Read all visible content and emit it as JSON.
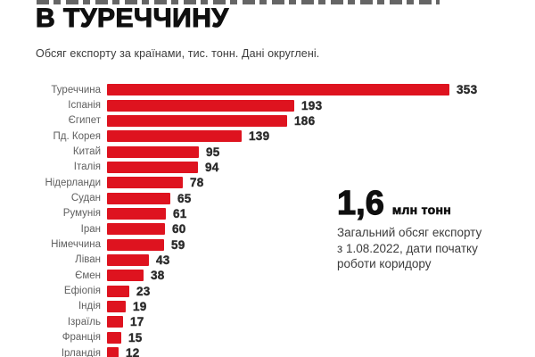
{
  "header": {
    "title": "В ТУРЕЧЧИНУ",
    "subtitle": "Обсяг експорту за країнами, тис. тонн. Дані округлені."
  },
  "annotation": {
    "value": "1,6",
    "unit": "млн тонн",
    "description": "Загальний обсяг експорту\nз 1.08.2022, дати початку\nроботи коридору"
  },
  "colors": {
    "bar": "#de131f",
    "title": "#0f0f0f",
    "label": "#5f5f5f",
    "value": "#2b2b2b"
  },
  "chart_data": {
    "type": "bar",
    "orientation": "horizontal",
    "title": "В ТУРЕЧЧИНУ",
    "subtitle": "Обсяг експорту за країнами, тис. тонн. Дані округлені.",
    "unit": "тис. тонн",
    "categories": [
      "Туреччина",
      "Іспанія",
      "Єгипет",
      "Пд. Корея",
      "Китай",
      "Італія",
      "Нідерланди",
      "Судан",
      "Румунія",
      "Іран",
      "Німеччина",
      "Ліван",
      "Ємен",
      "Ефіопія",
      "Індія",
      "Ізраїль",
      "Франція",
      "Ірландія"
    ],
    "values": [
      353,
      193,
      186,
      139,
      95,
      94,
      78,
      65,
      61,
      60,
      59,
      43,
      38,
      23,
      19,
      17,
      15,
      12
    ],
    "value_labels_shown": true,
    "grid": false,
    "legend": false,
    "xlim": [
      0,
      353
    ],
    "annotation_total": "1,6 млн тонн — Загальний обсяг експорту з 1.08.2022, дати початку роботи коридору"
  }
}
